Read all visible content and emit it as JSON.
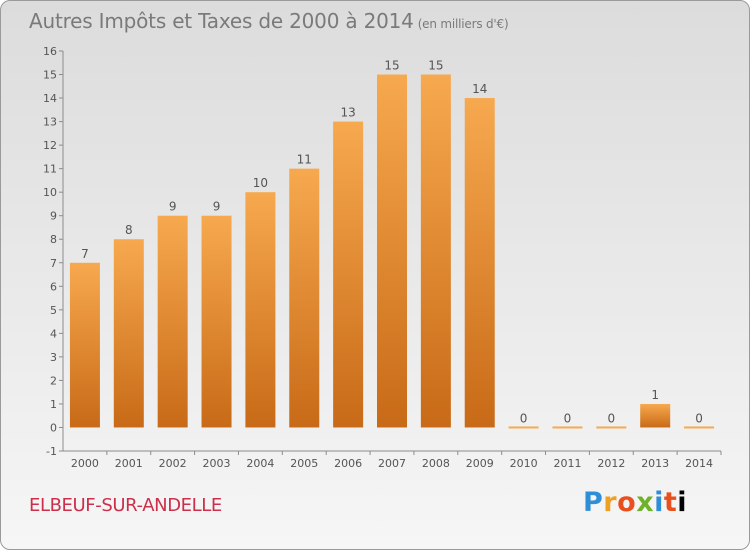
{
  "header": {
    "title": "Autres Impôts et Taxes de 2000 à 2014",
    "unit": "(en milliers d'€)"
  },
  "footer": {
    "commune": "ELBEUF-SUR-ANDELLE",
    "logo": "Proxiti",
    "logo_letters": [
      "P",
      "r",
      "o",
      "x",
      "i",
      "t",
      "i"
    ]
  },
  "colors": {
    "bar_light": "#f7a94f",
    "bar_dark": "#c86a17",
    "text": "#555555",
    "commune": "#cc2f4a"
  },
  "chart_data": {
    "type": "bar",
    "title": "Autres Impôts et Taxes de 2000 à 2014",
    "subtitle": "(en milliers d'€)",
    "categories": [
      "2000",
      "2001",
      "2002",
      "2003",
      "2004",
      "2005",
      "2006",
      "2007",
      "2008",
      "2009",
      "2010",
      "2011",
      "2012",
      "2013",
      "2014"
    ],
    "values": [
      7,
      8,
      9,
      9,
      10,
      11,
      13,
      15,
      15,
      14,
      0,
      0,
      0,
      1,
      0
    ],
    "ylim": [
      -1,
      16
    ],
    "yticks": [
      -1,
      0,
      1,
      2,
      3,
      4,
      5,
      6,
      7,
      8,
      9,
      10,
      11,
      12,
      13,
      14,
      15,
      16
    ],
    "grid": false,
    "data_labels": true
  }
}
